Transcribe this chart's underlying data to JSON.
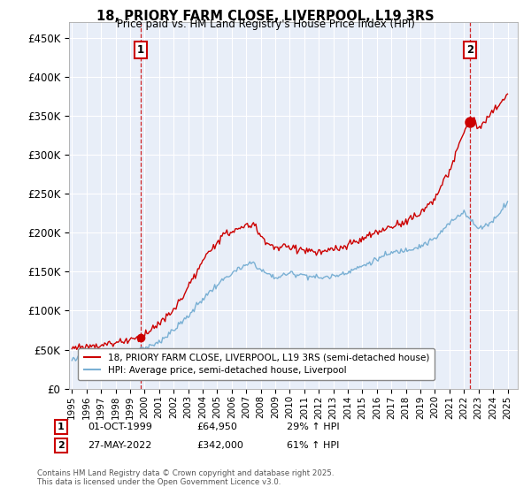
{
  "title": "18, PRIORY FARM CLOSE, LIVERPOOL, L19 3RS",
  "subtitle": "Price paid vs. HM Land Registry's House Price Index (HPI)",
  "ylabel_ticks": [
    "£0",
    "£50K",
    "£100K",
    "£150K",
    "£200K",
    "£250K",
    "£300K",
    "£350K",
    "£400K",
    "£450K"
  ],
  "ytick_values": [
    0,
    50000,
    100000,
    150000,
    200000,
    250000,
    300000,
    350000,
    400000,
    450000
  ],
  "ylim": [
    0,
    470000
  ],
  "xlim_start": 1994.8,
  "xlim_end": 2025.7,
  "price_color": "#cc0000",
  "hpi_color": "#7ab0d4",
  "vline_color": "#cc0000",
  "bg_color": "#ffffff",
  "plot_bg_color": "#e8eef8",
  "grid_color": "#ffffff",
  "legend_label_price": "18, PRIORY FARM CLOSE, LIVERPOOL, L19 3RS (semi-detached house)",
  "legend_label_hpi": "HPI: Average price, semi-detached house, Liverpool",
  "transaction1_x": 1999.75,
  "transaction1_y": 64950,
  "transaction2_x": 2022.42,
  "transaction2_y": 342000,
  "vline1_x": 1999.75,
  "vline2_x": 2022.42,
  "annot1_label": "1",
  "annot2_label": "2",
  "annot1_date": "01-OCT-1999",
  "annot1_price": "£64,950",
  "annot1_hpi": "29% ↑ HPI",
  "annot2_date": "27-MAY-2022",
  "annot2_price": "£342,000",
  "annot2_hpi": "61% ↑ HPI",
  "footer": "Contains HM Land Registry data © Crown copyright and database right 2025.\nThis data is licensed under the Open Government Licence v3.0.",
  "hpi_anchor_years": [
    1995,
    1996,
    1997,
    1998,
    1999,
    2000,
    2001,
    2002,
    2003,
    2004,
    2005,
    2006,
    2007,
    2007.5,
    2008,
    2009,
    2010,
    2011,
    2012,
    2013,
    2014,
    2015,
    2016,
    2017,
    2018,
    2019,
    2020,
    2021,
    2022,
    2022.5,
    2023,
    2024,
    2025
  ],
  "hpi_anchor_vals": [
    38000,
    39500,
    41000,
    43000,
    46000,
    51000,
    60000,
    75000,
    93000,
    115000,
    133000,
    148000,
    158000,
    162000,
    152000,
    142000,
    148000,
    146000,
    142000,
    144000,
    150000,
    157000,
    166000,
    174000,
    178000,
    183000,
    192000,
    212000,
    228000,
    215000,
    205000,
    215000,
    240000
  ],
  "price_anchor_years": [
    1995,
    1996,
    1997,
    1998,
    1999,
    1999.75,
    2000,
    2001,
    2002,
    2003,
    2004,
    2005,
    2006,
    2007,
    2007.5,
    2008,
    2009,
    2010,
    2011,
    2012,
    2013,
    2014,
    2015,
    2016,
    2017,
    2018,
    2019,
    2020,
    2021,
    2022,
    2022.42,
    2022.7,
    2023,
    2024,
    2025
  ],
  "price_anchor_vals": [
    52000,
    54000,
    56000,
    59000,
    63000,
    64950,
    70000,
    83000,
    100000,
    130000,
    162000,
    190000,
    202000,
    208000,
    212000,
    195000,
    180000,
    182000,
    178000,
    174000,
    178000,
    183000,
    192000,
    200000,
    208000,
    215000,
    225000,
    245000,
    278000,
    330000,
    342000,
    348000,
    332000,
    355000,
    378000
  ]
}
